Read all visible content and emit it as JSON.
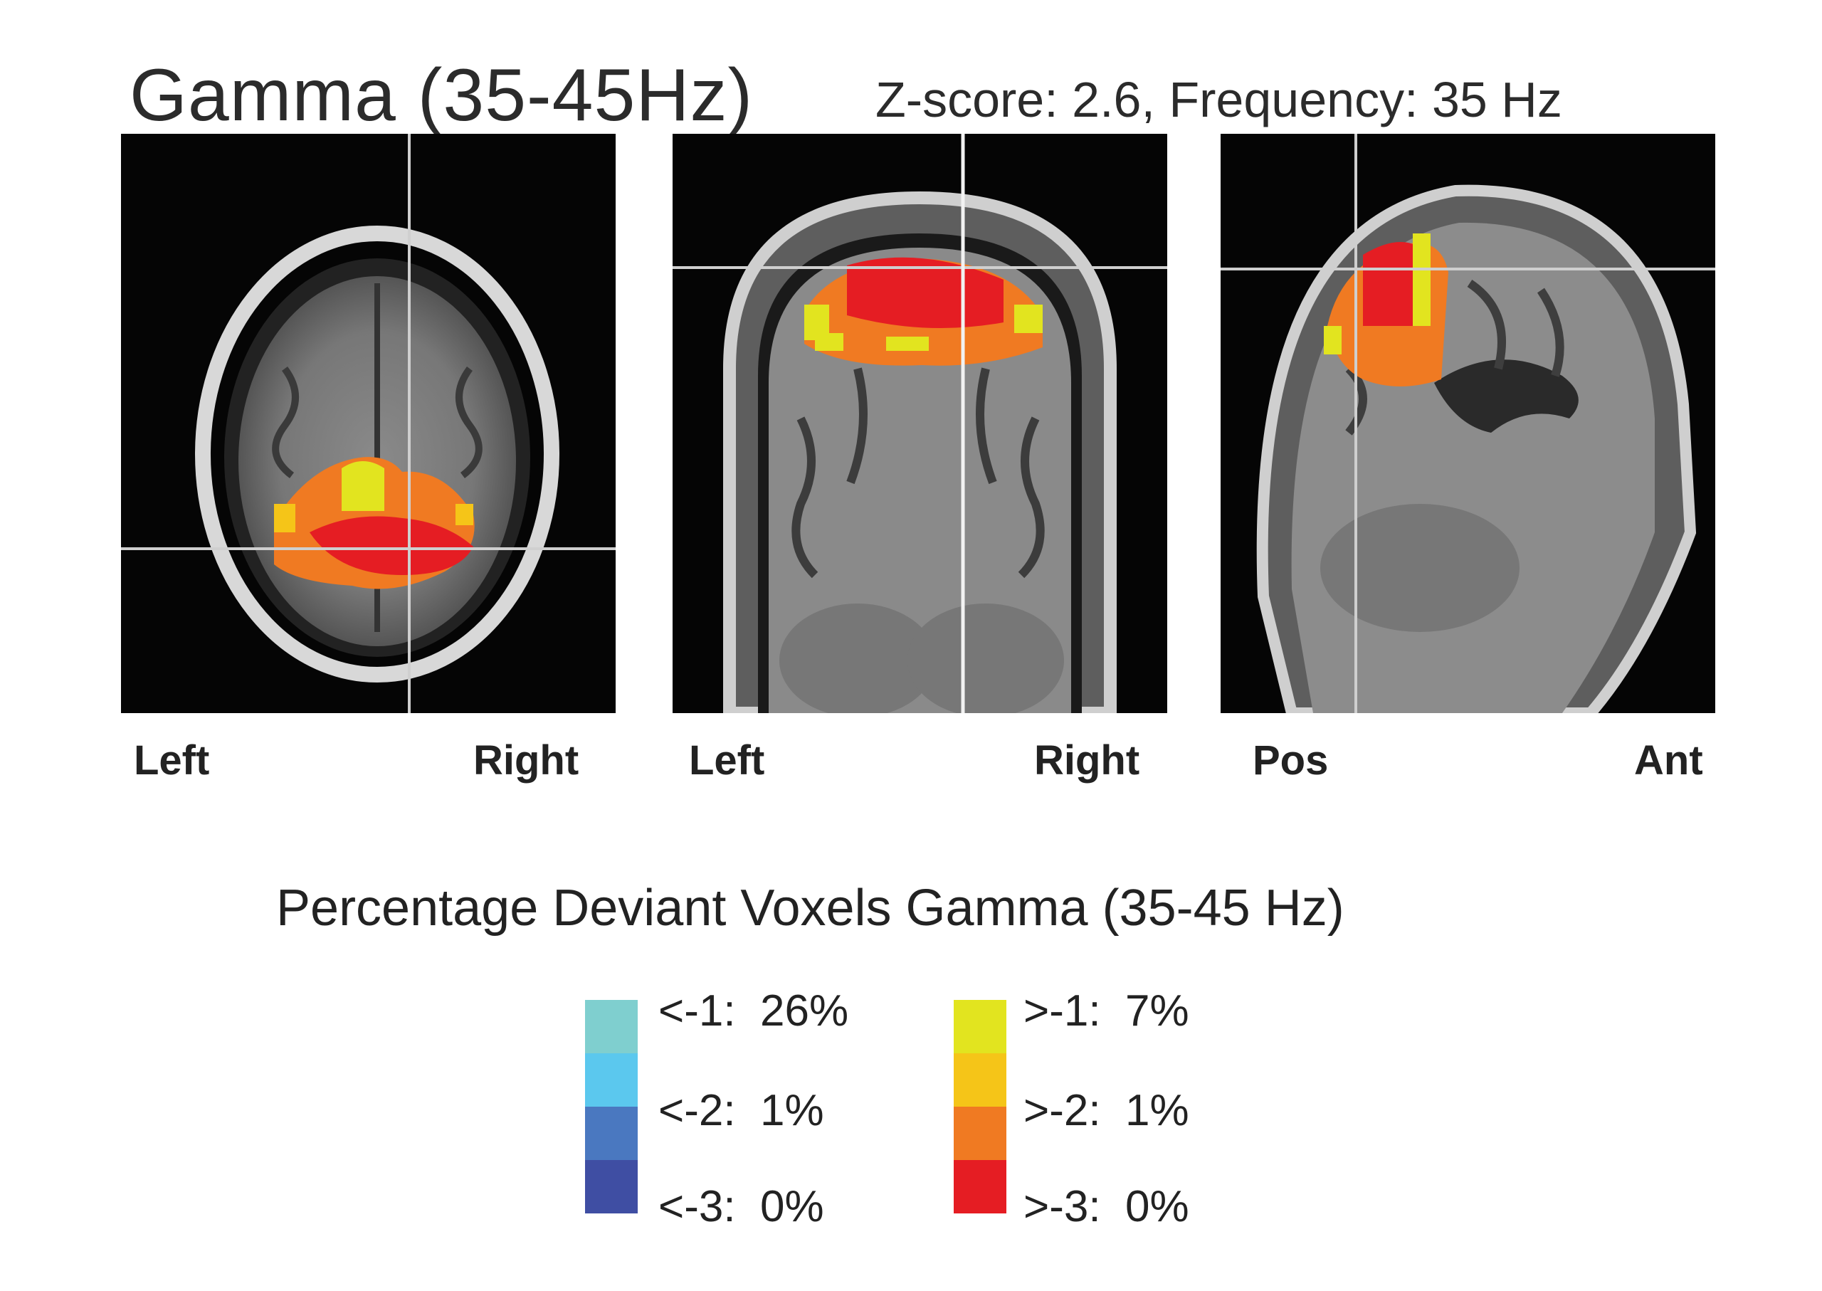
{
  "figure": {
    "title": "Gamma (35-45Hz)",
    "subtitle": "Z-score: 2.6, Frequency: 35 Hz"
  },
  "panels": [
    {
      "view": "axial",
      "left_label": "Left",
      "right_label": "Right"
    },
    {
      "view": "coronal",
      "left_label": "Left",
      "right_label": "Right"
    },
    {
      "view": "sagittal",
      "left_label": "Pos",
      "right_label": "Ant"
    }
  ],
  "legend": {
    "title": "Percentage Deviant Voxels Gamma (35-45 Hz)",
    "negative": [
      {
        "label": "<-1:  26%",
        "color": "#7fcfcf"
      },
      {
        "label": "<-2:  1%",
        "color": "#5bc8ee"
      },
      {
        "label": "<-3:  0%",
        "color": "#3f4ea3"
      }
    ],
    "positive": [
      {
        "label": ">-1:  7%",
        "color": "#e2e41f"
      },
      {
        "label": ">-2:  1%",
        "color": "#f07a22"
      },
      {
        "label": ">-3:  0%",
        "color": "#e51d23"
      }
    ],
    "negative_extra_color": "#4a78c0",
    "positive_extra_color": "#f5c518"
  }
}
